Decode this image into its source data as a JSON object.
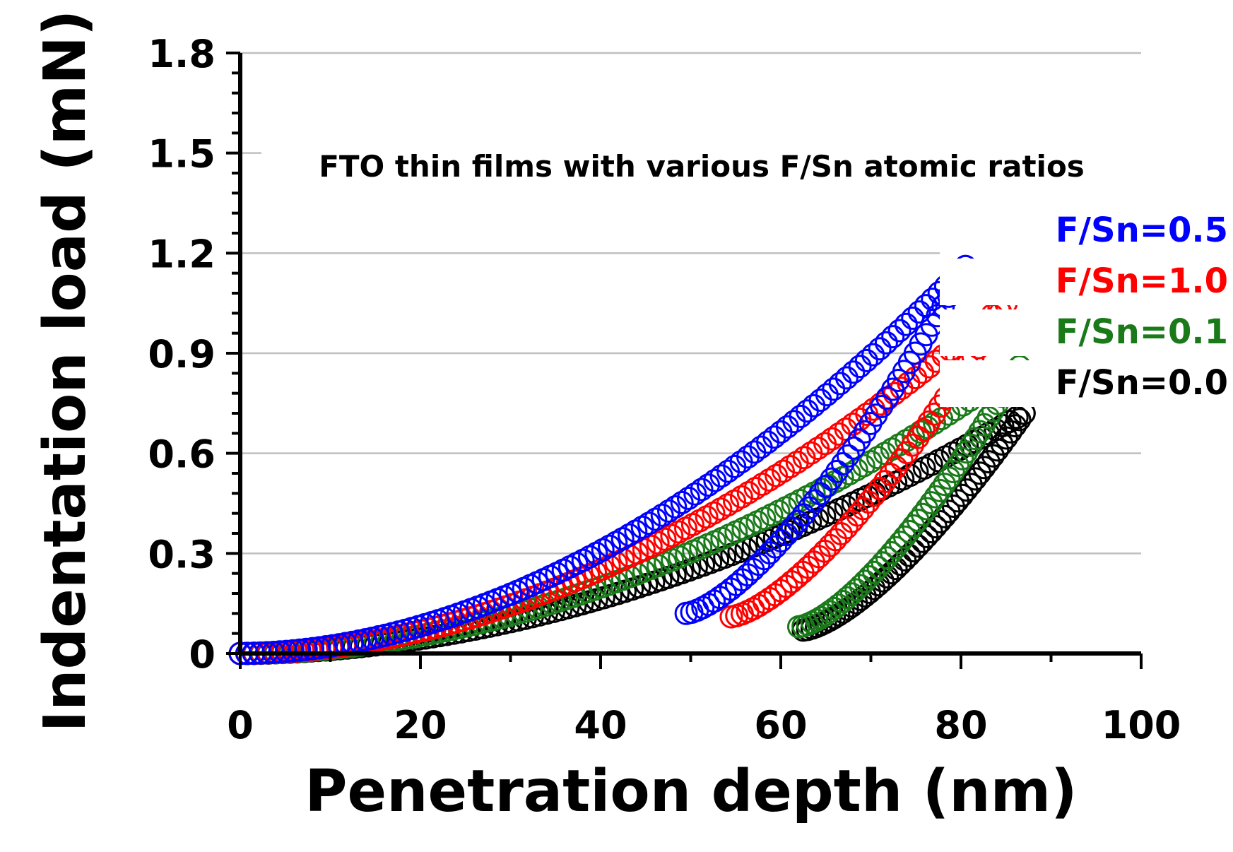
{
  "chart_data": {
    "type": "scatter",
    "title": "FTO thin films with various F/Sn atomic ratios",
    "xlabel": "Penetration depth (nm)",
    "ylabel": "Indentation load (mN)",
    "xlim": [
      0,
      100
    ],
    "ylim": [
      0,
      1.8
    ],
    "xticks": [
      "0",
      "20",
      "40",
      "60",
      "80",
      "100"
    ],
    "yticks": [
      "0",
      "0.3",
      "0.6",
      "0.9",
      "1.2",
      "1.5",
      "1.8"
    ],
    "grid": "horizontal",
    "legend_position": "right",
    "series": [
      {
        "name": "F/Sn=0.0",
        "color": "#000000",
        "loading": {
          "x_max": 87.0,
          "y_max": 0.72
        },
        "unloading": {
          "x_residual": 62.5,
          "y_end": 0.07
        }
      },
      {
        "name": "F/Sn=0.1",
        "color": "#1a7a1a",
        "loading": {
          "x_max": 86.5,
          "y_max": 0.86
        },
        "unloading": {
          "x_residual": 62.0,
          "y_end": 0.08
        }
      },
      {
        "name": "F/Sn=1.0",
        "color": "#ff0000",
        "loading": {
          "x_max": 85.0,
          "y_max": 1.05
        },
        "unloading": {
          "x_residual": 54.5,
          "y_end": 0.11
        }
      },
      {
        "name": "F/Sn=0.5",
        "color": "#0000ff",
        "loading": {
          "x_max": 80.5,
          "y_max": 1.16
        },
        "unloading": {
          "x_residual": 49.5,
          "y_end": 0.12
        }
      }
    ]
  }
}
